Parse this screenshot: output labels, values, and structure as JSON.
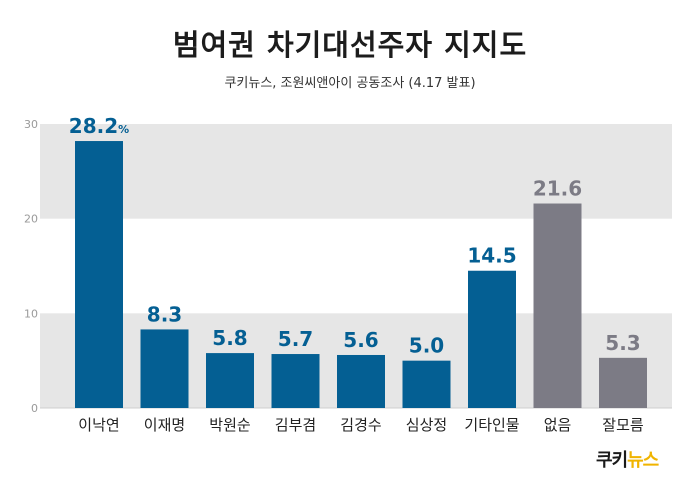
{
  "chart_data": {
    "type": "bar",
    "title": "범여권 차기대선주자 지지도",
    "subtitle": "쿠키뉴스, 조원씨앤아이 공동조사 (4.17 발표)",
    "categories": [
      "이낙연",
      "이재명",
      "박원순",
      "김부겸",
      "김경수",
      "심상정",
      "기타인물",
      "없음",
      "잘모름"
    ],
    "values": [
      28.2,
      8.3,
      5.8,
      5.7,
      5.6,
      5.0,
      14.5,
      21.6,
      5.3
    ],
    "value_labels": [
      "28.2",
      "8.3",
      "5.8",
      "5.7",
      "5.6",
      "5.0",
      "14.5",
      "21.6",
      "5.3"
    ],
    "first_value_unit": "%",
    "bar_colors": [
      "#045f93",
      "#045f93",
      "#045f93",
      "#045f93",
      "#045f93",
      "#045f93",
      "#045f93",
      "#7c7b85",
      "#7c7b85"
    ],
    "label_colors": [
      "#045f93",
      "#045f93",
      "#045f93",
      "#045f93",
      "#045f93",
      "#045f93",
      "#045f93",
      "#7c7b85",
      "#7c7b85"
    ],
    "ylim": [
      0,
      30
    ],
    "yticks": [
      0,
      10,
      20,
      30
    ],
    "band_color": "#e6e6e6",
    "grid": false,
    "xlabel": "",
    "ylabel": ""
  },
  "logo": {
    "main": "쿠키",
    "accent": "뉴스"
  }
}
